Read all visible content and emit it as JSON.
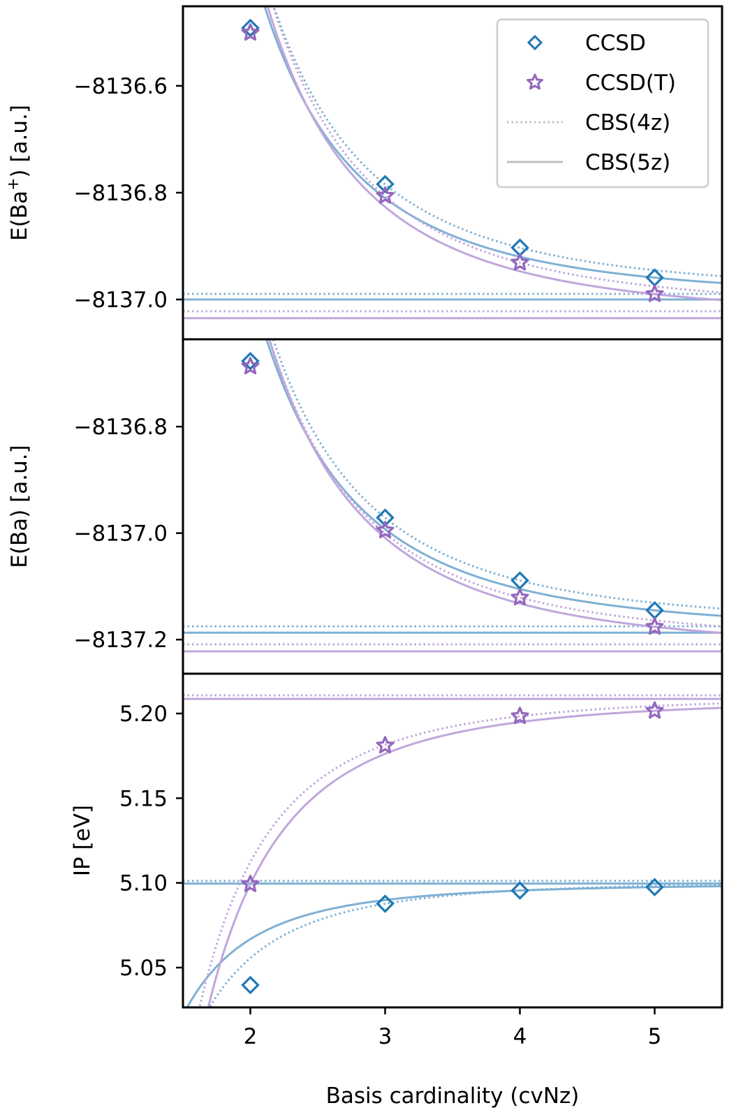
{
  "colors": {
    "ccsd_marker": "#1f77b4",
    "ccsdt_marker": "#9467bd",
    "ccsd_line": "#7fb0d4",
    "ccsdt_line": "#c0a6dc",
    "legend_line": "#bfbfbf",
    "legend_border": "#cccccc"
  },
  "legend": {
    "placement": "top-right",
    "entries": [
      {
        "label": "CCSD",
        "kind": "diamond"
      },
      {
        "label": "CCSD(T)",
        "kind": "star"
      },
      {
        "label": "CBS(4z)",
        "kind": "dotted-line"
      },
      {
        "label": "CBS(5z)",
        "kind": "solid-line"
      }
    ]
  },
  "chart_data": [
    {
      "type": "line",
      "panel": "top",
      "title": "",
      "xlabel": "",
      "ylabel": "E(Ba⁺) [a.u.]",
      "ylabel_main": "E(Ba",
      "ylabel_sup": "+",
      "ylabel_tail": ") [a.u.]",
      "xlim": [
        1.5,
        5.5
      ],
      "ylim": [
        -8137.0745,
        -8136.451
      ],
      "yticks": [
        -8136.6,
        -8136.8,
        -8137.0
      ],
      "ytick_labels": [
        "−8136.6",
        "−8136.8",
        "−8137.0"
      ],
      "x": [
        2,
        3,
        4,
        5
      ],
      "series": [
        {
          "name": "CCSD",
          "values": [
            -8136.4915,
            -8136.784,
            -8136.903,
            -8136.959
          ]
        },
        {
          "name": "CCSD(T)",
          "values": [
            -8136.5006,
            -8136.806,
            -8136.931,
            -8136.99
          ]
        }
      ],
      "cbs": {
        "CCSD": {
          "4z": -8136.9895,
          "5z": -8137.0
        },
        "CCSD(T)": {
          "4z": -8137.022,
          "5z": -8137.035
        }
      }
    },
    {
      "type": "line",
      "panel": "middle",
      "title": "",
      "xlabel": "",
      "ylabel": "E(Ba) [a.u.]",
      "xlim": [
        1.5,
        5.5
      ],
      "ylim": [
        -8137.264,
        -8136.636
      ],
      "yticks": [
        -8136.8,
        -8137.0,
        -8137.2
      ],
      "ytick_labels": [
        "−8136.8",
        "−8137.0",
        "−8137.2"
      ],
      "x": [
        2,
        3,
        4,
        5
      ],
      "series": [
        {
          "name": "CCSD",
          "values": [
            -8136.677,
            -8136.971,
            -8137.089,
            -8137.145
          ]
        },
        {
          "name": "CCSD(T)",
          "values": [
            -8136.687,
            -8136.995,
            -8137.121,
            -8137.176
          ]
        }
      ],
      "cbs": {
        "CCSD": {
          "4z": -8137.175,
          "5z": -8137.187
        },
        "CCSD(T)": {
          "4z": -8137.209,
          "5z": -8137.222
        }
      }
    },
    {
      "type": "line",
      "panel": "bottom",
      "title": "",
      "xlabel": "Basis cardinality (cvNz)",
      "ylabel": "IP [eV]",
      "xlim": [
        1.5,
        5.5
      ],
      "ylim": [
        5.0265,
        5.2235
      ],
      "yticks": [
        5.2,
        5.15,
        5.1,
        5.05
      ],
      "ytick_labels": [
        "5.20",
        "5.15",
        "5.10",
        "5.05"
      ],
      "xticks": [
        2,
        3,
        4,
        5
      ],
      "xtick_labels": [
        "2",
        "3",
        "4",
        "5"
      ],
      "x": [
        2,
        3,
        4,
        5
      ],
      "series": [
        {
          "name": "CCSD",
          "values": [
            5.0397,
            5.0877,
            5.0955,
            5.0975
          ]
        },
        {
          "name": "CCSD(T)",
          "values": [
            5.0992,
            5.1811,
            5.1984,
            5.2016
          ]
        }
      ],
      "cbs": {
        "CCSD": {
          "4z": 5.1012,
          "5z": 5.0996
        },
        "CCSD(T)": {
          "4z": 5.2107,
          "5z": 5.2086
        }
      }
    }
  ]
}
